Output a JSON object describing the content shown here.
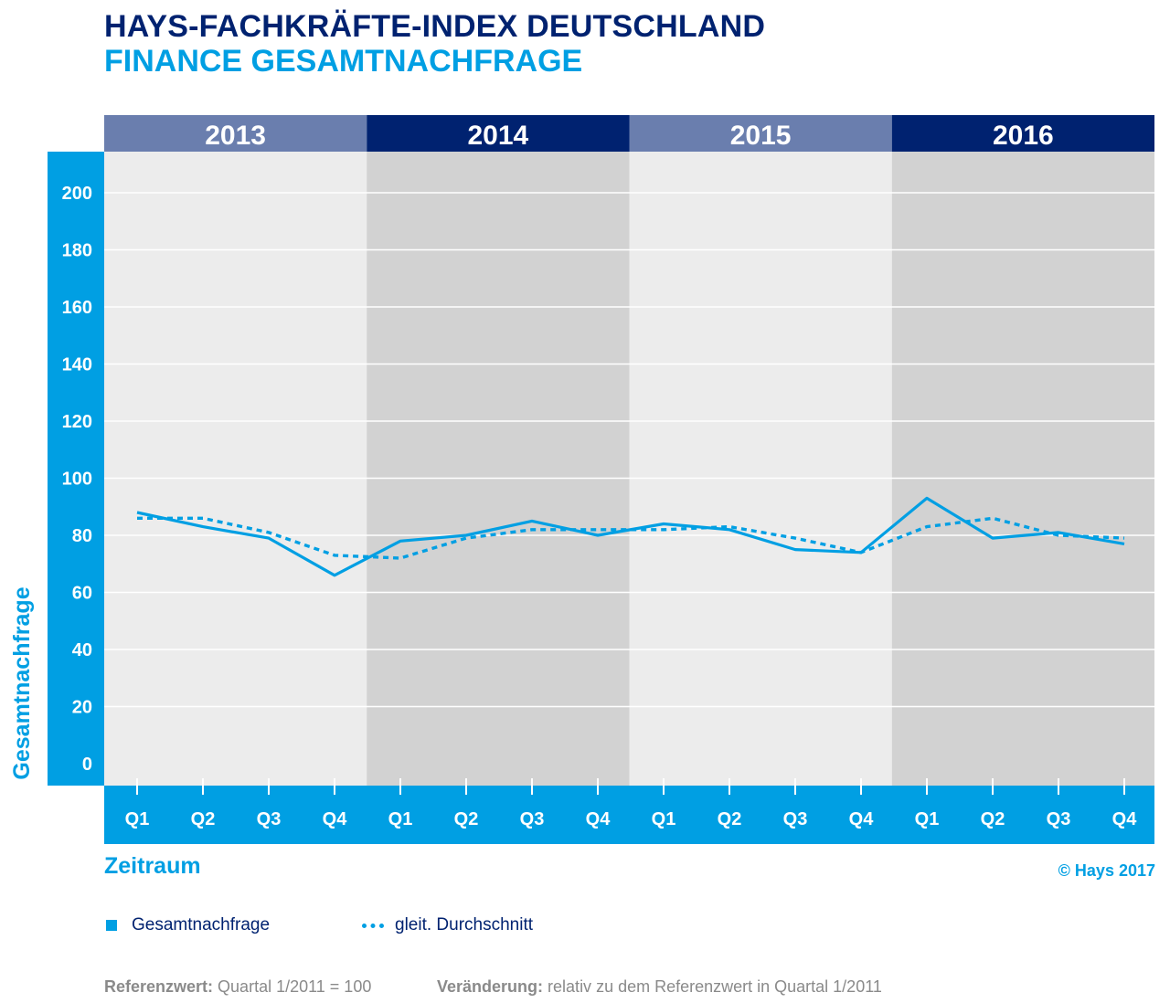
{
  "header": {
    "title": "HAYS-FACHKRÄFTE-INDEX DEUTSCHLAND",
    "subtitle": "FINANCE GESAMTNACHFRAGE"
  },
  "colors": {
    "navy": "#002270",
    "blue": "#009fe3",
    "year_light": "#6a7eae",
    "band_light": "#ececec",
    "band_dark": "#d2d2d2"
  },
  "chart_data": {
    "type": "line",
    "years": [
      "2013",
      "2014",
      "2015",
      "2016"
    ],
    "categories": [
      "Q1",
      "Q2",
      "Q3",
      "Q4",
      "Q1",
      "Q2",
      "Q3",
      "Q4",
      "Q1",
      "Q2",
      "Q3",
      "Q4",
      "Q1",
      "Q2",
      "Q3",
      "Q4"
    ],
    "series": [
      {
        "name": "Gesamtnachfrage",
        "style": "solid",
        "values": [
          88,
          83,
          79,
          66,
          78,
          80,
          85,
          80,
          84,
          82,
          75,
          74,
          93,
          79,
          81,
          77
        ]
      },
      {
        "name": "gleit. Durchschnitt",
        "style": "dotted",
        "values": [
          86,
          86,
          81,
          73,
          72,
          79,
          82,
          82,
          82,
          83,
          79,
          74,
          83,
          86,
          80,
          79
        ]
      }
    ],
    "yticks": [
      "0",
      "20",
      "40",
      "60",
      "80",
      "100",
      "120",
      "140",
      "160",
      "180",
      "200"
    ],
    "ylim": [
      0,
      200
    ],
    "ylabel": "Gesamtnachfrage",
    "xlabel": "Zeitraum",
    "grid": true
  },
  "copyright": "© Hays 2017",
  "footnotes": {
    "ref_label": "Referenzwert:",
    "ref_value": "Quartal 1/2011 = 100",
    "change_label": "Veränderung:",
    "change_value": "relativ zu dem Referenzwert in Quartal 1/2011"
  }
}
